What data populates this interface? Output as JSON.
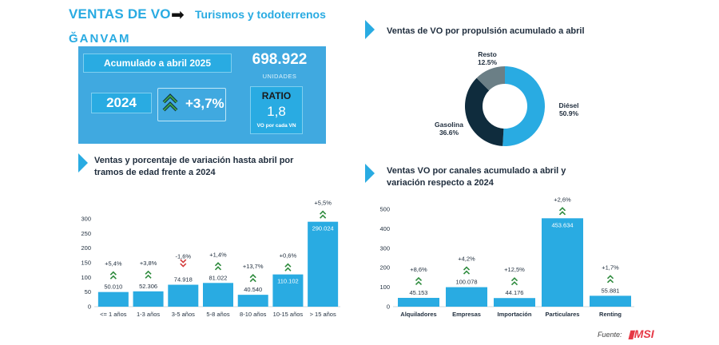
{
  "header": {
    "title": "VENTAS DE VO",
    "subtitle": "Turismos y todoterrenos",
    "logo": "ĞANVAM"
  },
  "summary": {
    "acumulado_label": "Acumulado a abril 2025",
    "units_value": "698.922",
    "units_label": "UNIDADES",
    "year_label": "2024",
    "change": "+3,7%",
    "ratio_label": "RATIO",
    "ratio_value": "1,8",
    "ratio_caption": "VO por cada VN"
  },
  "colors": {
    "accent": "#29abe2",
    "bar": "#29abe2",
    "dark": "#0f2c3d",
    "grey": "#6b7f86",
    "up_arrow": "#2e8b3d",
    "down_arrow": "#d33a3a"
  },
  "source": {
    "label": "Fuente:",
    "brand": "MSI"
  },
  "chart_data": [
    {
      "type": "pie",
      "title": "Ventas de VO por propulsión acumulado a abril",
      "slices": [
        {
          "label": "Diésel",
          "value": 50.9,
          "display": "50.9%",
          "color": "#29abe2"
        },
        {
          "label": "Gasolina",
          "value": 36.6,
          "display": "36.6%",
          "color": "#0f2c3d"
        },
        {
          "label": "Resto",
          "value": 12.5,
          "display": "12.5%",
          "color": "#6b7f86"
        }
      ]
    },
    {
      "type": "bar",
      "title": "Ventas y porcentaje de variación hasta abril por tramos de edad frente a 2024",
      "categories": [
        "<= 1 años",
        "1-3 años",
        "3-5 años",
        "5-8 años",
        "8-10 años",
        "10-15 años",
        "> 15 años"
      ],
      "values": [
        50010,
        52306,
        74918,
        81022,
        40540,
        110102,
        290024
      ],
      "value_labels": [
        "50.010",
        "52.306",
        "74.918",
        "81.022",
        "40.540",
        "110.102",
        "290.024"
      ],
      "changes": [
        "+5,4%",
        "+3,8%",
        "-1,6%",
        "+1,4%",
        "+13,7%",
        "+0,6%",
        "+5,5%"
      ],
      "directions": [
        "up",
        "up",
        "down",
        "up",
        "up",
        "up",
        "up"
      ],
      "yticks": [
        "0",
        "50",
        "100",
        "150",
        "200",
        "250",
        "300"
      ],
      "ylim": [
        0,
        300000
      ],
      "grid": false
    },
    {
      "type": "bar",
      "title": "Ventas VO por canales acumulado a abril y variación respecto a 2024",
      "categories": [
        "Alquiladores",
        "Empresas",
        "Importación",
        "Particulares",
        "Renting"
      ],
      "values": [
        45153,
        100078,
        44176,
        453634,
        55881
      ],
      "value_labels": [
        "45.153",
        "100.078",
        "44.176",
        "453.634",
        "55.881"
      ],
      "changes": [
        "+8,6%",
        "+4,2%",
        "+12,5%",
        "+2,6%",
        "+1,7%"
      ],
      "directions": [
        "up",
        "up",
        "up",
        "up",
        "up"
      ],
      "yticks": [
        "0",
        "100",
        "200",
        "300",
        "400",
        "500"
      ],
      "ylim": [
        0,
        500000
      ],
      "grid": false
    }
  ]
}
